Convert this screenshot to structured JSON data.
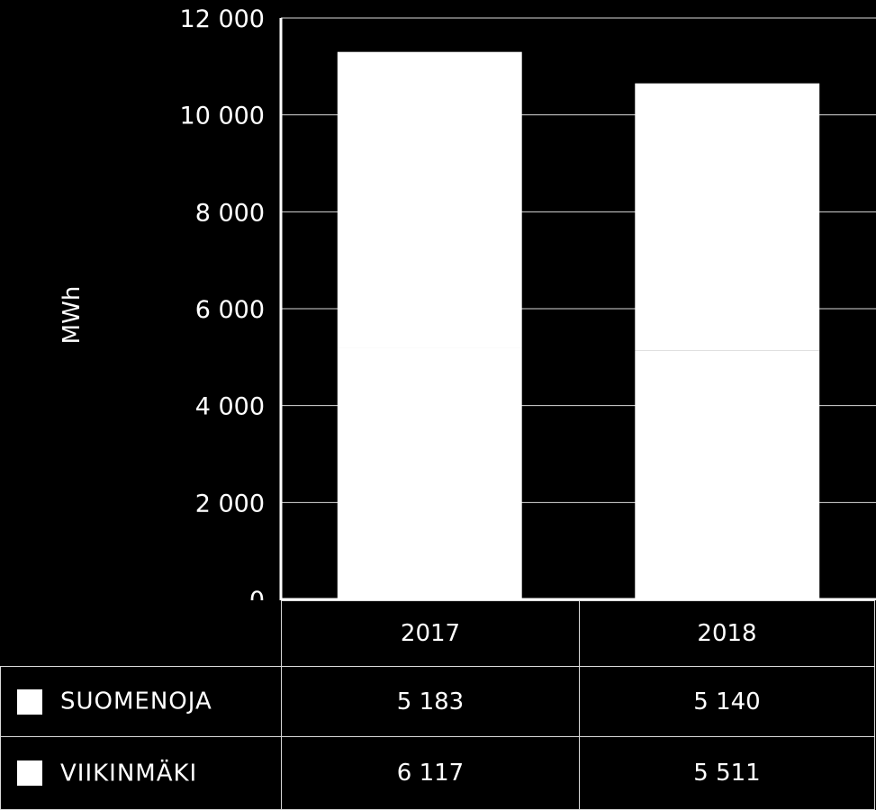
{
  "chart_data": {
    "type": "bar",
    "stacked": true,
    "categories": [
      "2017",
      "2018"
    ],
    "series": [
      {
        "name": "SUOMENOJA",
        "values": [
          5183,
          5140
        ],
        "labels": [
          "5 183",
          "5 140"
        ],
        "color": "#ffffff"
      },
      {
        "name": "VIIKINMÄKI",
        "values": [
          6117,
          5511
        ],
        "labels": [
          "6 117",
          "5 511"
        ],
        "color": "#ffffff"
      }
    ],
    "ylabel": "MWh",
    "ylim": [
      0,
      12000
    ],
    "yticks": [
      0,
      2000,
      4000,
      6000,
      8000,
      10000,
      12000
    ],
    "ytick_labels": [
      "0",
      "2 000",
      "4 000",
      "6 000",
      "8 000",
      "10 000",
      "12 000"
    ],
    "grid": true,
    "background": "#000000",
    "gridline_color": "#d9d9d9",
    "legend": "data-table"
  }
}
